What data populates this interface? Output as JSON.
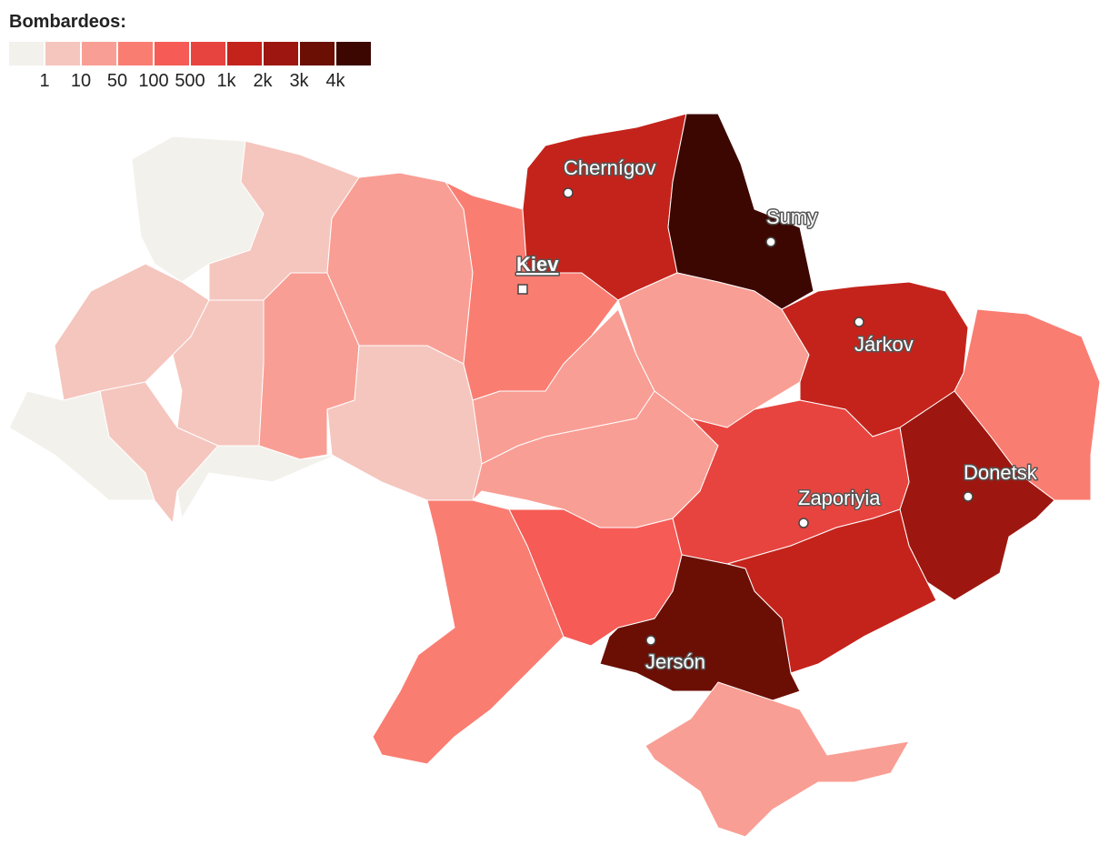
{
  "legend": {
    "title": "Bombardeos:",
    "colors": [
      "#f3f1ec",
      "#f5c6be",
      "#f99e94",
      "#fa7d72",
      "#f65b56",
      "#e8443f",
      "#c4231b",
      "#9d1710",
      "#6b0f05",
      "#3d0701"
    ],
    "labels": [
      "1",
      "10",
      "50",
      "100",
      "500",
      "1k",
      "2k",
      "3k",
      "4k"
    ]
  },
  "cities": [
    {
      "name": "Chernígov"
    },
    {
      "name": "Sumy"
    },
    {
      "name": "Kiev"
    },
    {
      "name": "Járkov"
    },
    {
      "name": "Donetsk"
    },
    {
      "name": "Zaporiyia"
    },
    {
      "name": "Jersón"
    }
  ]
}
